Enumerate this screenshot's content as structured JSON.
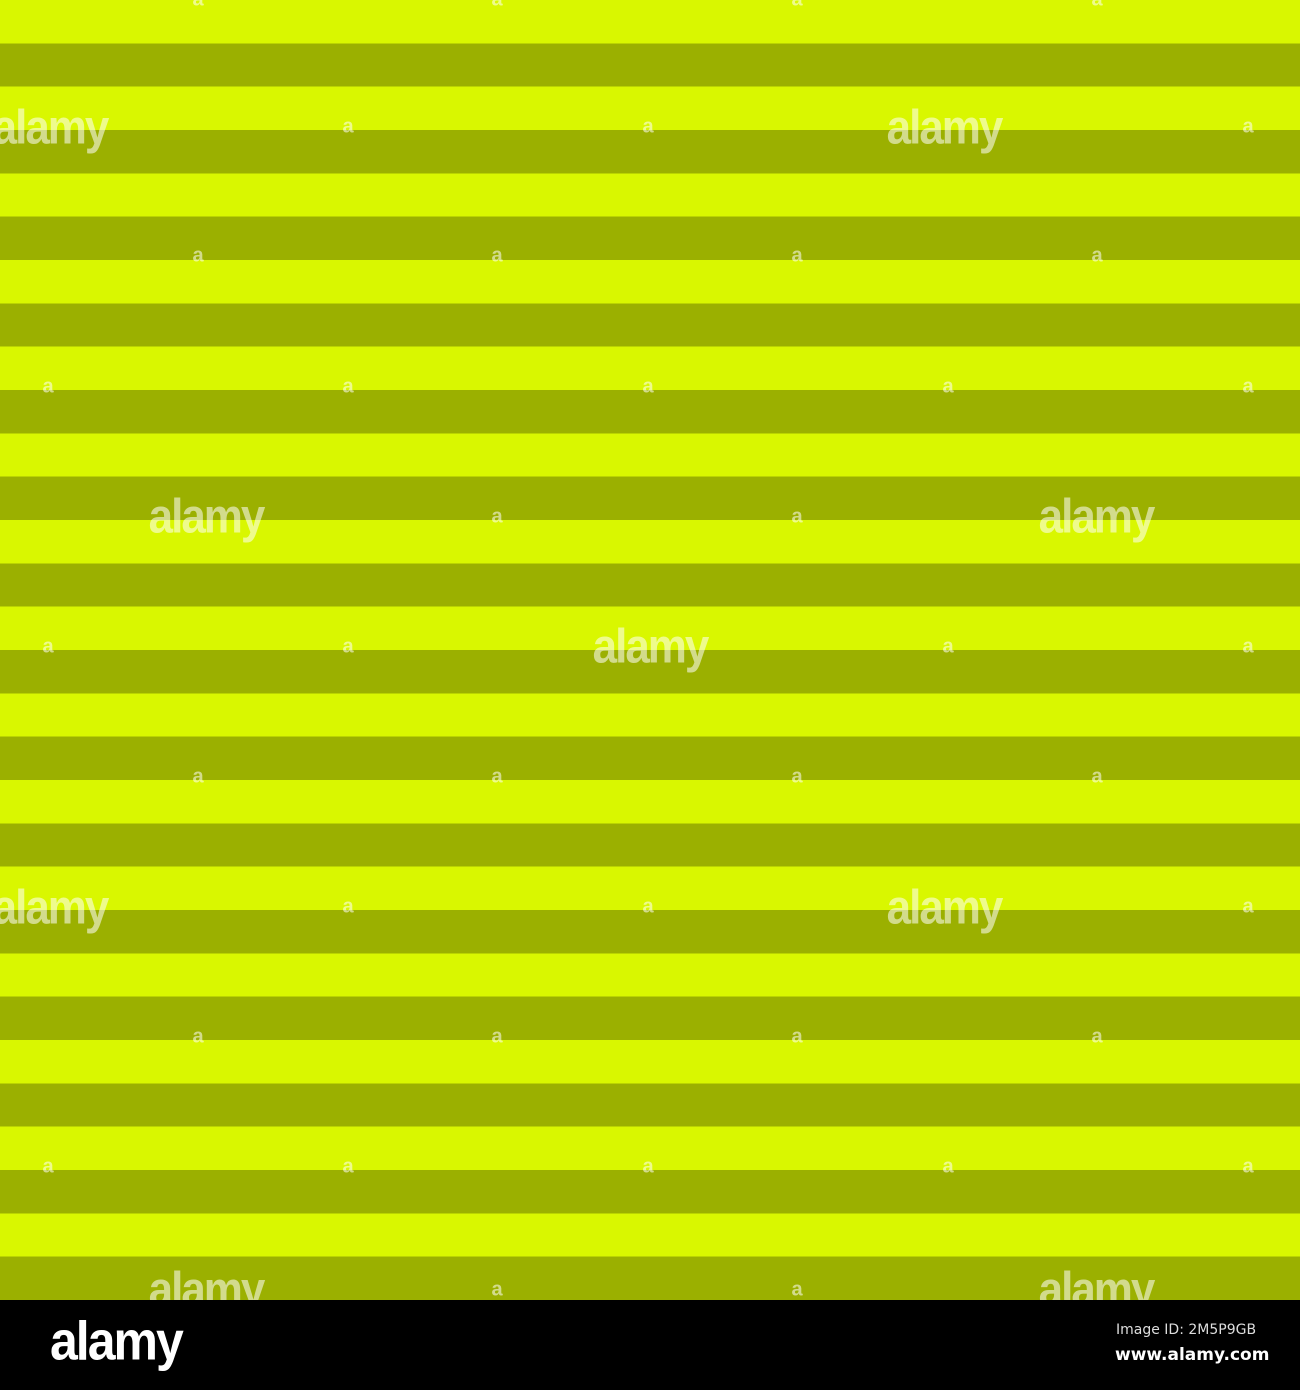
{
  "colors": {
    "stripe_light": "#d9f700",
    "stripe_dark": "#9bb000",
    "footer": "#000000"
  },
  "watermark": {
    "text": "alamy",
    "small_text": "a"
  },
  "footer": {
    "logo": "alamy",
    "image_id": "Image ID: 2M5P9GB",
    "url": "www.alamy.com"
  }
}
